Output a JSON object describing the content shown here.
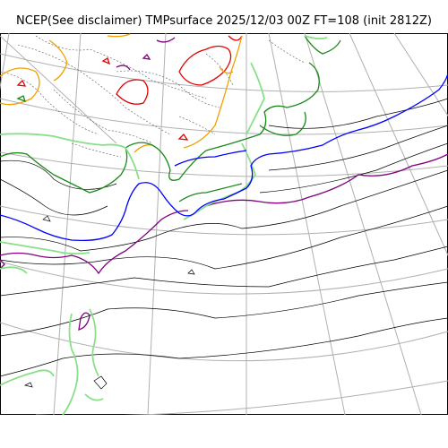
{
  "title": "NCEP(See disclaimer) TMPsurface 2025/12/03 00Z FT=108 (init 2812Z)",
  "colors": {
    "background": "#ffffff",
    "graticule": "#b0b0b0",
    "contour_default": "#000000",
    "contour_dashed": "#555555",
    "contour_red": "#e00000",
    "contour_orange": "#f0a000",
    "contour_purple": "#800080",
    "contour_green": "#1a8a1a",
    "contour_lightgreen": "#88e088",
    "contour_blue": "#0000ff"
  }
}
